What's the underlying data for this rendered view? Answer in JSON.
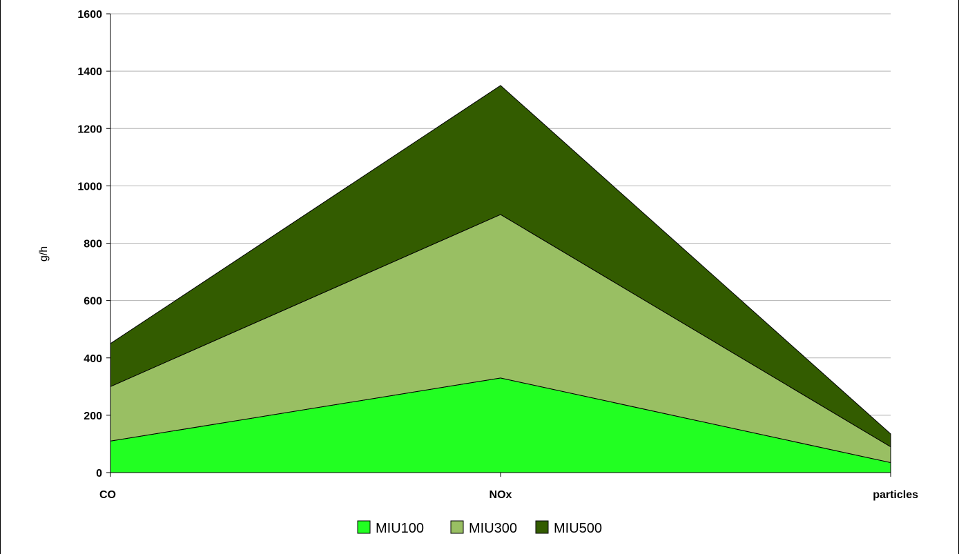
{
  "chart_data": {
    "type": "area",
    "stacked": true,
    "categories": [
      "CO",
      "NOx",
      "particles"
    ],
    "series": [
      {
        "name": "MIU100",
        "values": [
          110,
          330,
          35
        ],
        "color": "#22ff22"
      },
      {
        "name": "MIU300",
        "values": [
          190,
          570,
          55
        ],
        "color": "#99bf63"
      },
      {
        "name": "MIU500",
        "values": [
          150,
          450,
          45
        ],
        "color": "#335c00"
      }
    ],
    "ylabel": "g/h",
    "xlabel": "",
    "ylim": [
      0,
      1600
    ],
    "yticks": [
      0,
      200,
      400,
      600,
      800,
      1000,
      1200,
      1400,
      1600
    ],
    "grid": true,
    "legend": "bottom"
  }
}
